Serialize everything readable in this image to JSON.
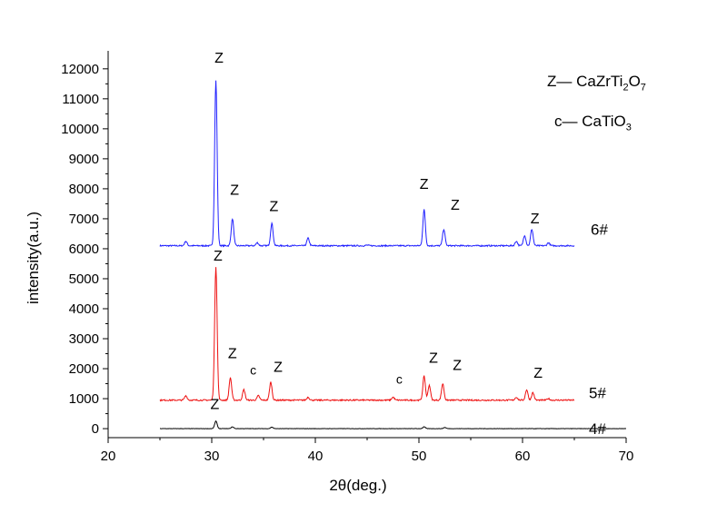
{
  "chart_data": {
    "type": "line",
    "xlabel": "2θ(deg.)",
    "ylabel": "intensity(a.u.)",
    "xlim": [
      20,
      70
    ],
    "ylim": [
      -300,
      12600
    ],
    "x_ticks": [
      20,
      30,
      40,
      50,
      60,
      70
    ],
    "y_ticks": [
      0,
      1000,
      2000,
      3000,
      4000,
      5000,
      6000,
      7000,
      8000,
      9000,
      10000,
      11000,
      12000
    ],
    "grid": false,
    "series": [
      {
        "name": "6#",
        "color": "#2020ff",
        "baseline": 6100,
        "x_range": [
          25,
          65
        ],
        "peaks": [
          {
            "x": 27.5,
            "y": 6250
          },
          {
            "x": 30.4,
            "y": 11600
          },
          {
            "x": 32.0,
            "y": 7000
          },
          {
            "x": 34.4,
            "y": 6200
          },
          {
            "x": 35.8,
            "y": 6850
          },
          {
            "x": 39.3,
            "y": 6350
          },
          {
            "x": 45.0,
            "y": 6120
          },
          {
            "x": 50.5,
            "y": 7300
          },
          {
            "x": 52.4,
            "y": 6650
          },
          {
            "x": 59.4,
            "y": 6250
          },
          {
            "x": 60.2,
            "y": 6450
          },
          {
            "x": 60.9,
            "y": 6650
          },
          {
            "x": 62.5,
            "y": 6200
          }
        ]
      },
      {
        "name": "5#",
        "color": "#ee1111",
        "baseline": 950,
        "x_range": [
          25,
          65
        ],
        "peaks": [
          {
            "x": 27.5,
            "y": 1100
          },
          {
            "x": 30.4,
            "y": 5400
          },
          {
            "x": 31.8,
            "y": 1700
          },
          {
            "x": 33.1,
            "y": 1300
          },
          {
            "x": 34.5,
            "y": 1100
          },
          {
            "x": 35.7,
            "y": 1550
          },
          {
            "x": 39.3,
            "y": 1050
          },
          {
            "x": 47.5,
            "y": 1050
          },
          {
            "x": 50.5,
            "y": 1750
          },
          {
            "x": 51.0,
            "y": 1450
          },
          {
            "x": 52.3,
            "y": 1500
          },
          {
            "x": 59.4,
            "y": 1050
          },
          {
            "x": 60.4,
            "y": 1300
          },
          {
            "x": 61.0,
            "y": 1200
          },
          {
            "x": 62.5,
            "y": 1000
          }
        ]
      },
      {
        "name": "4#",
        "color": "#000000",
        "baseline": 0,
        "x_range": [
          25,
          70
        ],
        "peaks": [
          {
            "x": 30.4,
            "y": 250
          },
          {
            "x": 32.0,
            "y": 60
          },
          {
            "x": 35.8,
            "y": 50
          },
          {
            "x": 50.5,
            "y": 60
          },
          {
            "x": 52.5,
            "y": 40
          }
        ]
      }
    ],
    "peak_labels": [
      {
        "text": "Z",
        "x": 30.7,
        "y": 12200
      },
      {
        "text": "Z",
        "x": 32.2,
        "y": 7800
      },
      {
        "text": "Z",
        "x": 36.0,
        "y": 7250
      },
      {
        "text": "Z",
        "x": 50.5,
        "y": 8000
      },
      {
        "text": "Z",
        "x": 53.5,
        "y": 7300
      },
      {
        "text": "Z",
        "x": 61.2,
        "y": 6850
      },
      {
        "text": "Z",
        "x": 30.6,
        "y": 5600
      },
      {
        "text": "Z",
        "x": 32.0,
        "y": 2350
      },
      {
        "text": "c",
        "x": 34.0,
        "y": 1800
      },
      {
        "text": "Z",
        "x": 36.4,
        "y": 1900
      },
      {
        "text": "c",
        "x": 48.1,
        "y": 1500
      },
      {
        "text": "Z",
        "x": 51.4,
        "y": 2200
      },
      {
        "text": "Z",
        "x": 53.7,
        "y": 1950
      },
      {
        "text": "Z",
        "x": 61.5,
        "y": 1700
      },
      {
        "text": "Z",
        "x": 30.3,
        "y": 650
      }
    ],
    "legend": {
      "z_key": "Z—",
      "z_formula": [
        "CaZrTi",
        "2",
        "O",
        "7"
      ],
      "c_key": "c—",
      "c_formula": [
        "CaTiO",
        "3"
      ]
    }
  }
}
